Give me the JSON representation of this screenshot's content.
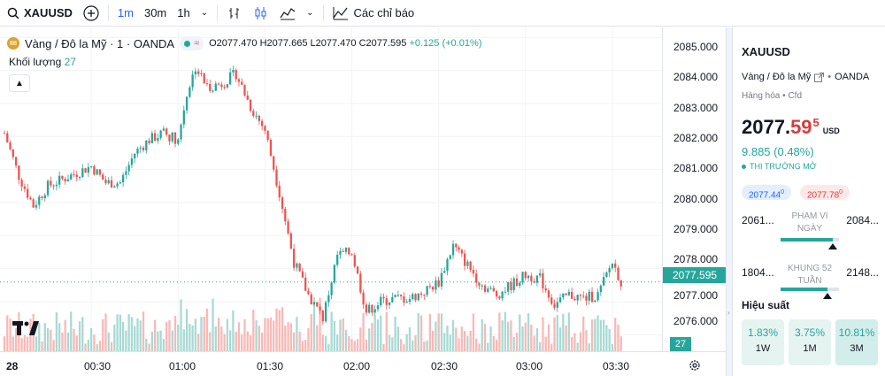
{
  "toolbar": {
    "symbol": "XAUUSD",
    "intervals": [
      "1m",
      "30m",
      "1h"
    ],
    "active_interval": "1m",
    "indicators_label": "Các chỉ báo"
  },
  "legend": {
    "title": "Vàng / Đô la Mỹ · 1 · OANDA",
    "open": "O2077.470",
    "high": "H2077.665",
    "low": "L2077.470",
    "close": "C2077.595",
    "change": "+0.125 (+0.01%)",
    "volume_label": "Khối lượng",
    "volume_value": "27"
  },
  "price_axis": {
    "labels": [
      "2085.000",
      "2084.000",
      "2083.000",
      "2082.000",
      "2081.000",
      "2080.000",
      "2079.000",
      "2078.000",
      "2077.000",
      "2076.000"
    ],
    "last_price": "2077.595",
    "volume_badge": "27"
  },
  "time_axis": {
    "labels": [
      "28",
      "00:30",
      "01:00",
      "01:30",
      "02:00",
      "02:30",
      "03:00",
      "03:30"
    ]
  },
  "colors": {
    "up": "#26a69a",
    "down": "#ef5350",
    "accent": "#2962ff"
  },
  "chart_data": {
    "type": "candlestick",
    "xlabel": "",
    "ylabel": "",
    "ylim": [
      2075.5,
      2085.3
    ],
    "x_range": [
      "00:00",
      "03:45"
    ],
    "close_path": [
      {
        "t": "00:00",
        "p": 2082.1
      },
      {
        "t": "00:05",
        "p": 2080.8
      },
      {
        "t": "00:10",
        "p": 2079.9
      },
      {
        "t": "00:15",
        "p": 2080.5
      },
      {
        "t": "00:20",
        "p": 2080.7
      },
      {
        "t": "00:25",
        "p": 2080.9
      },
      {
        "t": "00:30",
        "p": 2081.1
      },
      {
        "t": "00:35",
        "p": 2080.6
      },
      {
        "t": "00:40",
        "p": 2080.6
      },
      {
        "t": "00:45",
        "p": 2081.5
      },
      {
        "t": "00:50",
        "p": 2081.9
      },
      {
        "t": "00:55",
        "p": 2082.1
      },
      {
        "t": "01:00",
        "p": 2081.9
      },
      {
        "t": "01:03",
        "p": 2083.3
      },
      {
        "t": "01:06",
        "p": 2084.1
      },
      {
        "t": "01:10",
        "p": 2083.5
      },
      {
        "t": "01:15",
        "p": 2083.6
      },
      {
        "t": "01:20",
        "p": 2083.9
      },
      {
        "t": "01:25",
        "p": 2082.9
      },
      {
        "t": "01:30",
        "p": 2082.2
      },
      {
        "t": "01:35",
        "p": 2080.3
      },
      {
        "t": "01:40",
        "p": 2078.2
      },
      {
        "t": "01:45",
        "p": 2077.2
      },
      {
        "t": "01:50",
        "p": 2076.5
      },
      {
        "t": "01:55",
        "p": 2078.4
      },
      {
        "t": "02:00",
        "p": 2078.5
      },
      {
        "t": "02:05",
        "p": 2076.7
      },
      {
        "t": "02:10",
        "p": 2077.0
      },
      {
        "t": "02:15",
        "p": 2077.1
      },
      {
        "t": "02:20",
        "p": 2077.1
      },
      {
        "t": "02:25",
        "p": 2077.3
      },
      {
        "t": "02:30",
        "p": 2077.6
      },
      {
        "t": "02:35",
        "p": 2078.7
      },
      {
        "t": "02:40",
        "p": 2078.1
      },
      {
        "t": "02:45",
        "p": 2077.5
      },
      {
        "t": "02:50",
        "p": 2077.2
      },
      {
        "t": "02:55",
        "p": 2077.5
      },
      {
        "t": "03:00",
        "p": 2077.8
      },
      {
        "t": "03:05",
        "p": 2077.7
      },
      {
        "t": "03:10",
        "p": 2076.9
      },
      {
        "t": "03:15",
        "p": 2077.2
      },
      {
        "t": "03:20",
        "p": 2077.1
      },
      {
        "t": "03:25",
        "p": 2077.2
      },
      {
        "t": "03:30",
        "p": 2078.2
      },
      {
        "t": "03:33",
        "p": 2077.6
      }
    ],
    "volume_range": [
      5,
      45
    ]
  },
  "panel": {
    "symbol": "XAUUSD",
    "desc": "Vàng / Đô la Mỹ",
    "exchange": "OANDA",
    "type": "Hàng hóa",
    "subtype": "Cfd",
    "price_main": "2077.",
    "price_red": "59",
    "price_sup": "5",
    "currency": "USD",
    "change": "9.885 (0.48%)",
    "market_status": "THỊ TRƯỜNG MỞ",
    "bid": "2077.44",
    "bid_sup": "0",
    "ask": "2077.78",
    "ask_sup": "0",
    "day_range": {
      "low": "2061...",
      "high": "2084...",
      "label1": "PHẠM VI",
      "label2": "NGÀY",
      "position": 0.9
    },
    "week52_range": {
      "low": "1804...",
      "high": "2148...",
      "label1": "KHUNG 52",
      "label2": "TUẦN",
      "position": 0.8
    },
    "performance_title": "Hiệu suất",
    "performance": [
      {
        "value": "1.83%",
        "label": "1W"
      },
      {
        "value": "3.75%",
        "label": "1M"
      },
      {
        "value": "10.81%",
        "label": "3M"
      }
    ]
  }
}
